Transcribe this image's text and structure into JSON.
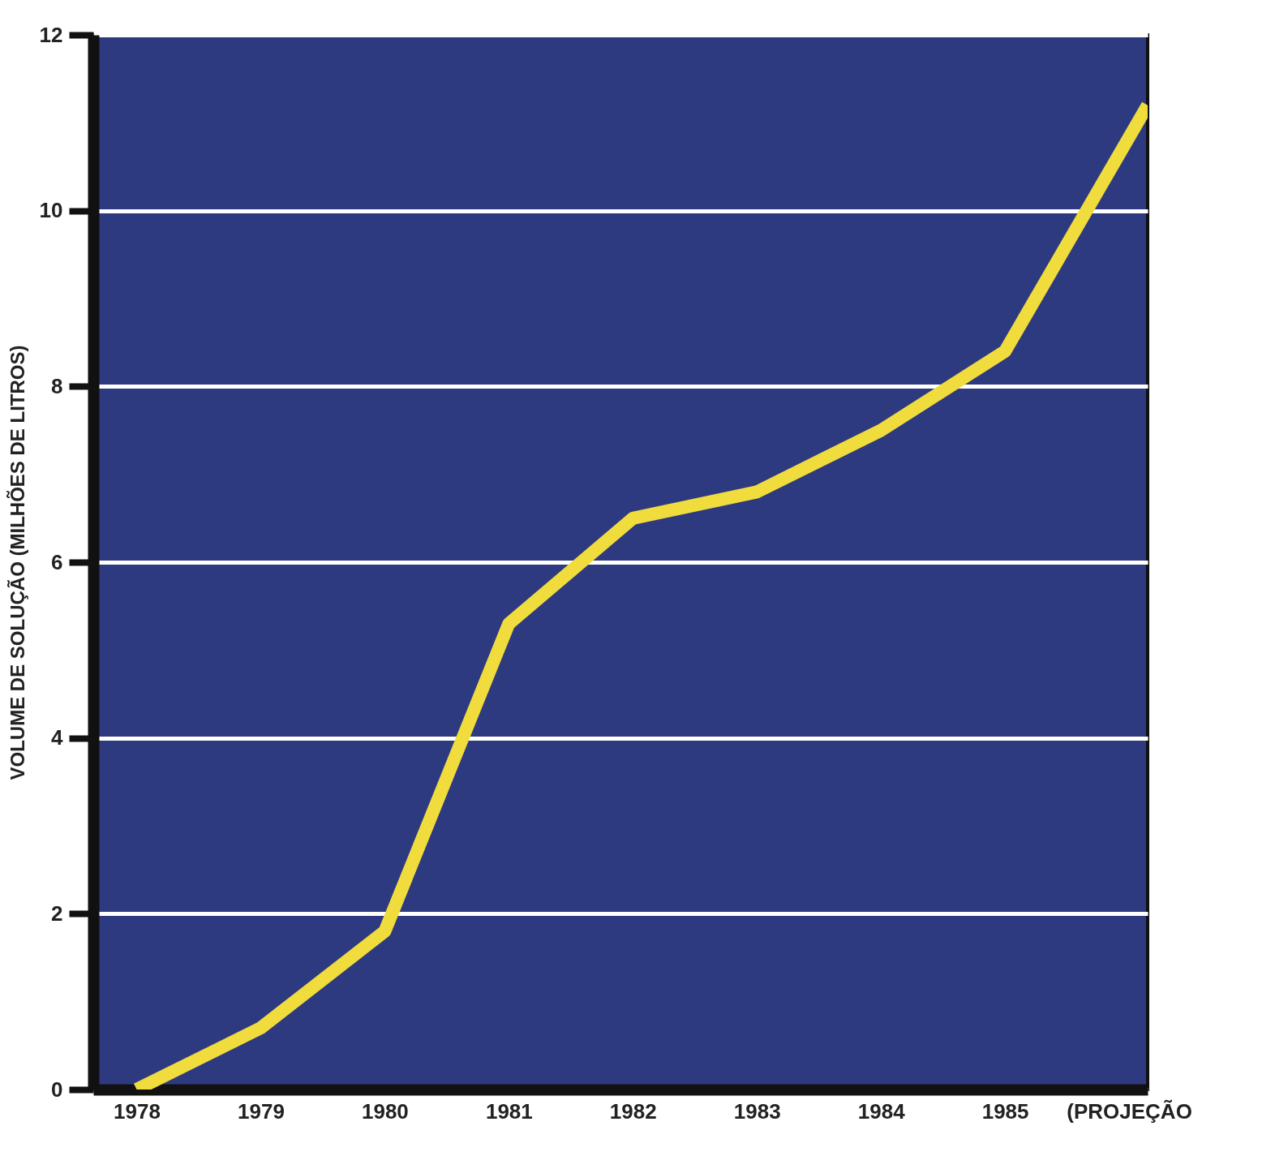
{
  "chart_data": {
    "type": "line",
    "ylabel": "VOLUME DE SOLUÇÃO (MILHÕES DE LITROS)",
    "x": [
      1978,
      1979,
      1980,
      1981,
      1982,
      1983,
      1984,
      1985,
      1986.15
    ],
    "series": [
      {
        "color": "#f0dc3c",
        "values": [
          0.0,
          0.7,
          1.8,
          5.3,
          6.5,
          6.8,
          7.5,
          8.4,
          11.2
        ]
      }
    ],
    "xlim": [
      1977.65,
      1986.15
    ],
    "xticks": [
      1978,
      1979,
      1980,
      1981,
      1982,
      1983,
      1984,
      1985,
      {
        "value": 1986,
        "label": "(PROJEÇÃO"
      }
    ],
    "ylim": [
      0,
      12
    ],
    "yticks": [
      0,
      2,
      4,
      6,
      8,
      10,
      12
    ],
    "grid": "y",
    "marker": "none",
    "line_style": "solid"
  }
}
